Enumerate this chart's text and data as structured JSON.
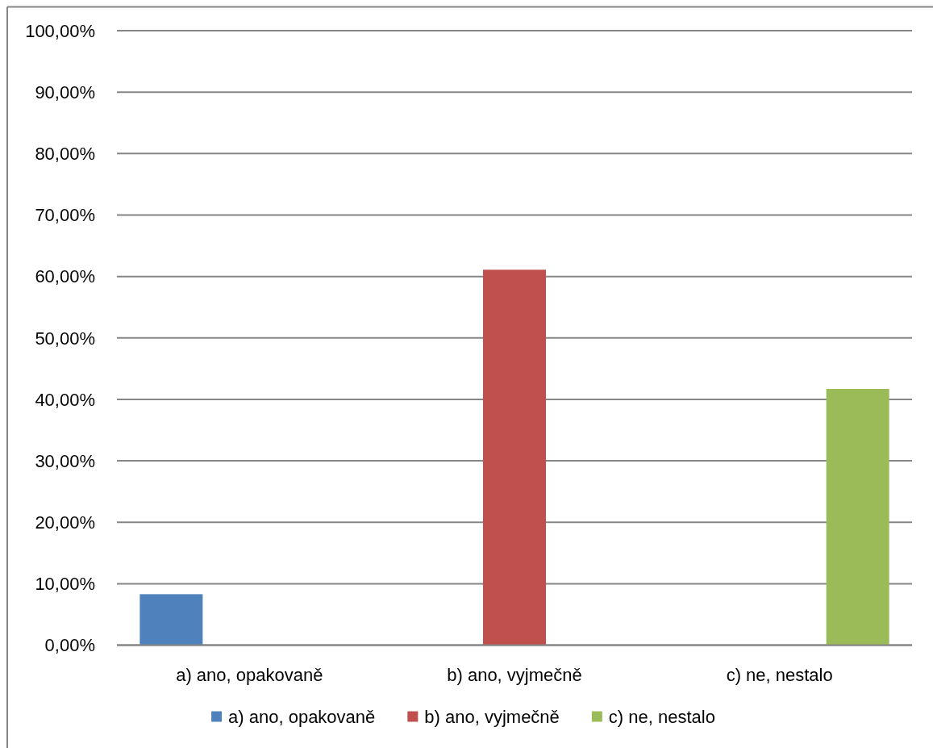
{
  "chart_data": {
    "type": "bar",
    "categories": [
      "a) ano, opakovaně",
      "b) ano, vyjmečně",
      "c) ne, nestalo"
    ],
    "series": [
      {
        "name": "a) ano, opakovaně",
        "color": "#4f81bd",
        "values": [
          8.3,
          null,
          null
        ]
      },
      {
        "name": "b) ano, vyjmečně",
        "color": "#c0504d",
        "values": [
          null,
          61.1,
          null
        ]
      },
      {
        "name": "c) ne, nestalo",
        "color": "#9bbb59",
        "values": [
          null,
          null,
          41.7
        ]
      }
    ],
    "ylim": [
      0,
      100
    ],
    "yticks": [
      {
        "value": 0,
        "label": "0,00%"
      },
      {
        "value": 10,
        "label": "10,00%"
      },
      {
        "value": 20,
        "label": "20,00%"
      },
      {
        "value": 30,
        "label": "30,00%"
      },
      {
        "value": 40,
        "label": "40,00%"
      },
      {
        "value": 50,
        "label": "50,00%"
      },
      {
        "value": 60,
        "label": "60,00%"
      },
      {
        "value": 70,
        "label": "70,00%"
      },
      {
        "value": 80,
        "label": "80,00%"
      },
      {
        "value": 90,
        "label": "90,00%"
      },
      {
        "value": 100,
        "label": "100,00%"
      }
    ],
    "grid": "y",
    "legend": "bottom"
  }
}
